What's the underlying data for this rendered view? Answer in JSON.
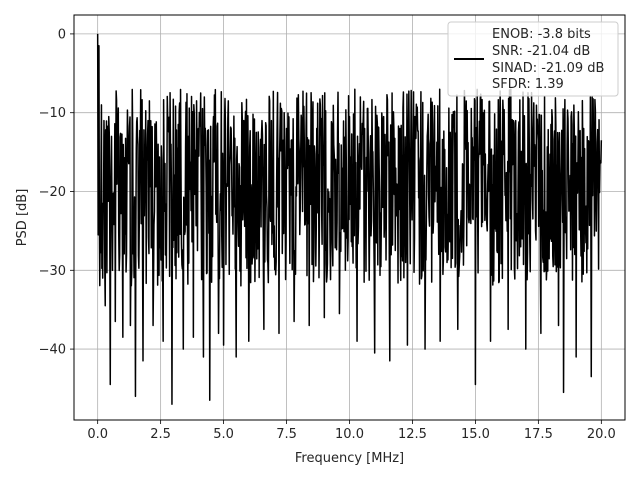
{
  "chart_data": {
    "type": "line",
    "xlabel": "Frequency [MHz]",
    "ylabel": "PSD [dB]",
    "xlim": [
      -0.94,
      20.94
    ],
    "ylim": [
      -49.0,
      2.4
    ],
    "xticks": [
      0.0,
      2.5,
      5.0,
      7.5,
      10.0,
      12.5,
      15.0,
      17.5,
      20.0
    ],
    "xtick_labels": [
      "0.0",
      "2.5",
      "5.0",
      "7.5",
      "10.0",
      "12.5",
      "15.0",
      "17.5",
      "20.0"
    ],
    "yticks": [
      0,
      -10,
      -20,
      -30,
      -40
    ],
    "ytick_labels": [
      "0",
      "−10",
      "−20",
      "−30",
      "−40"
    ],
    "grid": true,
    "legend_position": "top-right",
    "legend": [
      "ENOB: -3.8 bits",
      "SNR: -21.04 dB",
      "SINAD: -21.09 dB",
      "SFDR: 1.39"
    ],
    "series": [
      {
        "color": "#000000",
        "description": "noise-like PSD trace across 0-20 MHz, sampled envelope points",
        "x": [
          0.0,
          0.02,
          0.05,
          0.1,
          0.15,
          0.2,
          0.25,
          0.3,
          0.4,
          0.5,
          0.55,
          0.7,
          0.8,
          1.0,
          1.2,
          1.3,
          1.5,
          1.6,
          1.8,
          2.0,
          2.2,
          2.4,
          2.6,
          2.8,
          2.95,
          3.2,
          3.4,
          3.6,
          3.8,
          4.0,
          4.2,
          4.45,
          4.6,
          4.8,
          5.0,
          5.3,
          5.5,
          5.8,
          6.0,
          6.3,
          6.6,
          6.9,
          7.2,
          7.5,
          7.8,
          8.1,
          8.4,
          8.7,
          9.0,
          9.3,
          9.6,
          10.0,
          10.3,
          10.6,
          11.0,
          11.3,
          11.6,
          12.0,
          12.3,
          12.6,
          13.0,
          13.3,
          13.6,
          14.0,
          14.3,
          14.6,
          15.0,
          15.3,
          15.6,
          16.0,
          16.3,
          16.6,
          17.0,
          17.3,
          17.6,
          18.0,
          18.3,
          18.5,
          18.8,
          19.0,
          19.3,
          19.6,
          20.0
        ],
        "y": [
          0.0,
          -25.5,
          -1.5,
          -24.0,
          -9.0,
          -31.0,
          -11.0,
          -34.5,
          -14.0,
          -44.5,
          -13.0,
          -36.5,
          -12.0,
          -38.5,
          -12.5,
          -37.0,
          -46.0,
          -14.0,
          -41.5,
          -11.0,
          -37.0,
          -14.0,
          -39.0,
          -12.0,
          -47.0,
          -11.5,
          -40.0,
          -13.0,
          -38.5,
          -12.0,
          -41.0,
          -46.5,
          -10.5,
          -38.0,
          -39.5,
          -12.0,
          -41.0,
          -11.0,
          -39.0,
          -12.5,
          -37.5,
          -11.0,
          -38.0,
          -12.0,
          -36.5,
          -11.0,
          -37.0,
          -12.0,
          -36.0,
          -11.5,
          -35.5,
          -10.5,
          -39.0,
          -12.0,
          -40.5,
          -11.0,
          -41.5,
          -12.0,
          -39.5,
          -10.5,
          -40.0,
          -11.5,
          -39.0,
          -12.5,
          -37.5,
          -11.0,
          -44.5,
          -10.0,
          -39.0,
          -12.5,
          -37.5,
          -11.0,
          -40.0,
          -12.0,
          -38.0,
          -11.5,
          -37.0,
          -45.5,
          -10.5,
          -41.0,
          -12.0,
          -43.5,
          -13.5
        ]
      }
    ]
  }
}
